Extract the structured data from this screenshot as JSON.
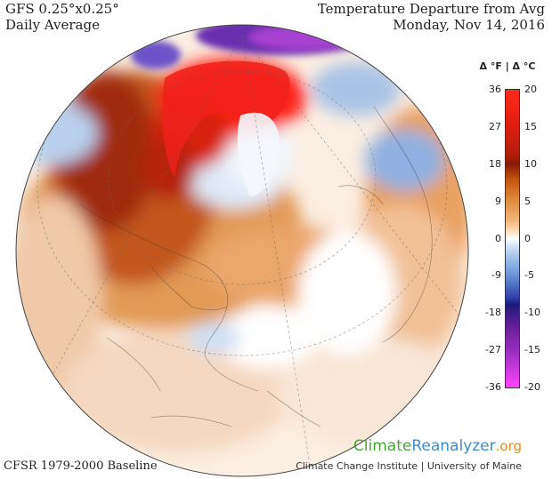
{
  "header": {
    "model": "GFS 0.25°x0.25°",
    "period": "Daily Average",
    "title": "Temperature Departure from Avg",
    "date": "Monday, Nov 14, 2016"
  },
  "footer": {
    "baseline": "CFSR 1979-2000 Baseline",
    "logo_part1": "Climate",
    "logo_part2": "Reanalyzer",
    "logo_part3": ".org",
    "institute": "Climate Change Institute | University of Maine"
  },
  "legend": {
    "title": "Δ °F  |  Δ °C",
    "fahrenheit_ticks": [
      "36",
      "27",
      "18",
      "9",
      "0",
      "-9",
      "-18",
      "-27",
      "-36"
    ],
    "celsius_ticks": [
      "20",
      "15",
      "10",
      "5",
      "0",
      "-5",
      "-10",
      "-15",
      "-20"
    ],
    "colors": {
      "warm_max": "#ff2a1a",
      "warm_mid": "#e08a3a",
      "neutral": "#ffffff",
      "cool_mid": "#6d96d8",
      "cold_max": "#ff44ff"
    }
  }
}
